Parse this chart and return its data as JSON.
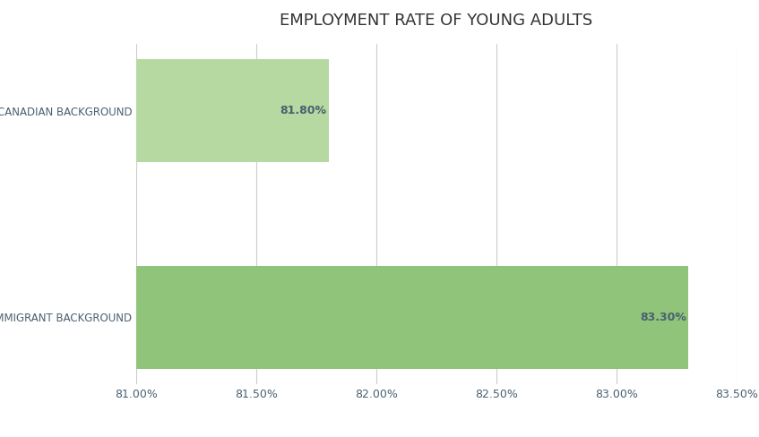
{
  "title": "EMPLOYMENT RATE OF YOUNG ADULTS",
  "categories": [
    "IMMIGRANT BACKGROUND",
    "CANADIAN BACKGROUND"
  ],
  "values": [
    83.3,
    81.8
  ],
  "xlim": [
    81.0,
    83.5
  ],
  "xticks": [
    81.0,
    81.5,
    82.0,
    82.5,
    83.0,
    83.5
  ],
  "bar_colors": [
    "#90c47a",
    "#b5d9a0"
  ],
  "label_color": "#4a6070",
  "title_color": "#333333",
  "background_color": "#ffffff",
  "grid_color": "#cccccc",
  "title_fontsize": 13,
  "label_fontsize": 8.5,
  "tick_fontsize": 9,
  "value_fontsize": 9
}
